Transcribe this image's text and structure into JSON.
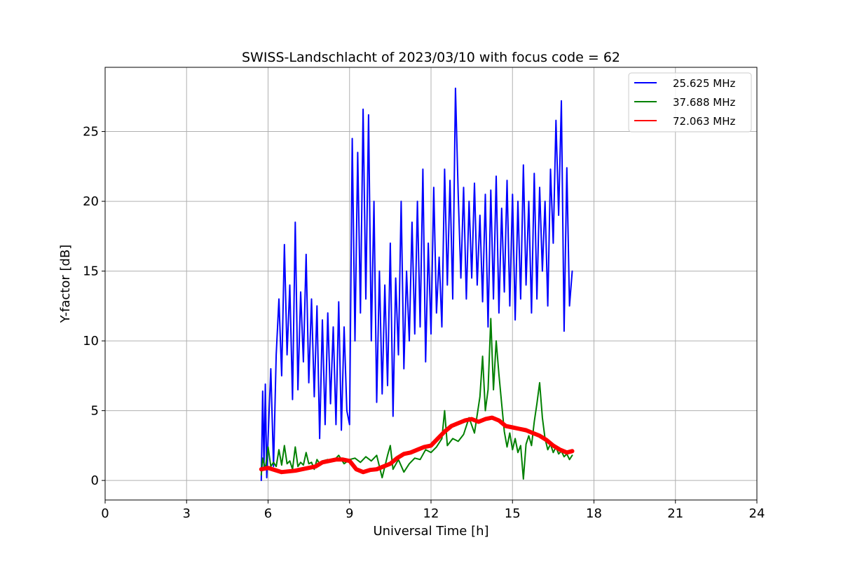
{
  "chart_data": {
    "type": "line",
    "title": "SWISS-Landschlacht of 2023/03/10 with focus code = 62",
    "xlabel": "Universal Time [h]",
    "ylabel": "Y-factor [dB]",
    "xlim": [
      0,
      24
    ],
    "ylim": [
      -1.4,
      29.6
    ],
    "xticks": [
      0,
      3,
      6,
      9,
      12,
      15,
      18,
      21,
      24
    ],
    "yticks": [
      0,
      5,
      10,
      15,
      20,
      25
    ],
    "grid": true,
    "legend_position": "top-right",
    "series": [
      {
        "name": "25.625 MHz",
        "color": "#0000ff",
        "x": [
          5.75,
          5.8,
          5.85,
          5.9,
          5.95,
          6.0,
          6.1,
          6.2,
          6.3,
          6.4,
          6.5,
          6.6,
          6.7,
          6.8,
          6.9,
          7.0,
          7.1,
          7.2,
          7.3,
          7.4,
          7.5,
          7.6,
          7.7,
          7.8,
          7.9,
          8.0,
          8.1,
          8.2,
          8.3,
          8.4,
          8.5,
          8.6,
          8.7,
          8.8,
          8.9,
          9.0,
          9.1,
          9.2,
          9.3,
          9.4,
          9.5,
          9.6,
          9.7,
          9.8,
          9.9,
          10.0,
          10.1,
          10.2,
          10.3,
          10.4,
          10.5,
          10.6,
          10.7,
          10.8,
          10.9,
          11.0,
          11.1,
          11.2,
          11.3,
          11.4,
          11.5,
          11.6,
          11.7,
          11.8,
          11.9,
          12.0,
          12.1,
          12.2,
          12.3,
          12.4,
          12.5,
          12.6,
          12.7,
          12.8,
          12.9,
          13.0,
          13.1,
          13.2,
          13.3,
          13.4,
          13.5,
          13.6,
          13.7,
          13.8,
          13.9,
          14.0,
          14.1,
          14.2,
          14.3,
          14.4,
          14.5,
          14.6,
          14.7,
          14.8,
          14.9,
          15.0,
          15.1,
          15.2,
          15.3,
          15.4,
          15.5,
          15.6,
          15.7,
          15.8,
          15.9,
          16.0,
          16.1,
          16.2,
          16.3,
          16.4,
          16.5,
          16.6,
          16.7,
          16.8,
          16.9,
          17.0,
          17.1,
          17.2
        ],
        "y": [
          0.0,
          6.4,
          1.0,
          6.9,
          0.2,
          3.0,
          8.0,
          1.0,
          9.0,
          13.0,
          7.5,
          16.9,
          9.0,
          14.0,
          5.8,
          18.5,
          6.5,
          13.5,
          8.5,
          16.2,
          7.0,
          13.0,
          6.0,
          12.5,
          3.0,
          11.5,
          4.0,
          12.0,
          5.5,
          11.0,
          4.0,
          12.8,
          3.6,
          11.0,
          5.0,
          4.0,
          24.5,
          10.0,
          23.5,
          12.0,
          26.6,
          13.0,
          26.2,
          10.0,
          20.0,
          5.6,
          15.0,
          6.2,
          14.0,
          6.8,
          17.0,
          4.6,
          14.5,
          9.0,
          20.0,
          8.0,
          15.0,
          10.0,
          18.5,
          10.5,
          20.0,
          11.0,
          22.3,
          8.5,
          17.0,
          10.5,
          21.0,
          12.0,
          16.0,
          11.0,
          22.3,
          14.0,
          21.5,
          13.0,
          28.1,
          20.5,
          14.5,
          21.0,
          13.0,
          20.0,
          14.5,
          21.3,
          14.0,
          19.0,
          12.8,
          20.5,
          11.0,
          20.8,
          13.0,
          21.8,
          12.0,
          19.5,
          13.5,
          21.5,
          12.5,
          20.5,
          11.5,
          20.0,
          13.0,
          22.6,
          14.0,
          20.0,
          12.0,
          22.0,
          13.0,
          21.0,
          15.0,
          20.0,
          12.5,
          22.3,
          17.0,
          25.8,
          19.0,
          27.2,
          10.7,
          22.4,
          12.5,
          15.0
        ]
      },
      {
        "name": "37.688 MHz",
        "color": "#008000",
        "x": [
          5.75,
          5.8,
          5.9,
          6.0,
          6.1,
          6.2,
          6.3,
          6.4,
          6.5,
          6.6,
          6.7,
          6.8,
          6.9,
          7.0,
          7.1,
          7.2,
          7.3,
          7.4,
          7.5,
          7.6,
          7.7,
          7.8,
          7.9,
          8.0,
          8.2,
          8.4,
          8.6,
          8.8,
          9.0,
          9.2,
          9.4,
          9.6,
          9.8,
          10.0,
          10.2,
          10.4,
          10.5,
          10.6,
          10.8,
          11.0,
          11.2,
          11.4,
          11.6,
          11.8,
          12.0,
          12.2,
          12.4,
          12.5,
          12.6,
          12.8,
          13.0,
          13.2,
          13.4,
          13.6,
          13.8,
          13.9,
          14.0,
          14.1,
          14.2,
          14.3,
          14.4,
          14.5,
          14.6,
          14.7,
          14.8,
          14.9,
          15.0,
          15.1,
          15.2,
          15.3,
          15.4,
          15.5,
          15.6,
          15.7,
          15.8,
          15.9,
          16.0,
          16.1,
          16.2,
          16.3,
          16.4,
          16.5,
          16.6,
          16.7,
          16.8,
          16.9,
          17.0,
          17.1,
          17.2
        ],
        "y": [
          0.4,
          1.6,
          0.8,
          2.4,
          1.0,
          1.3,
          1.0,
          2.2,
          1.1,
          2.5,
          1.2,
          1.4,
          0.8,
          2.4,
          1.0,
          1.3,
          1.1,
          2.0,
          1.2,
          1.3,
          0.8,
          1.5,
          1.2,
          1.4,
          1.5,
          1.4,
          1.8,
          1.2,
          1.5,
          1.6,
          1.3,
          1.7,
          1.4,
          1.8,
          0.2,
          1.8,
          2.5,
          0.8,
          1.5,
          0.6,
          1.2,
          1.6,
          1.5,
          2.2,
          2.0,
          2.4,
          3.0,
          5.0,
          2.5,
          3.0,
          2.8,
          3.3,
          4.5,
          3.4,
          6.0,
          8.9,
          5.0,
          6.5,
          11.6,
          6.5,
          10.0,
          7.6,
          5.5,
          3.5,
          2.4,
          3.4,
          2.2,
          3.0,
          2.0,
          2.5,
          0.1,
          2.6,
          3.2,
          2.5,
          4.2,
          5.5,
          7.0,
          4.5,
          3.0,
          2.2,
          2.6,
          2.0,
          2.4,
          1.9,
          2.1,
          1.7,
          1.9,
          1.5,
          1.8
        ]
      },
      {
        "name": "72.063 MHz",
        "color": "#ff0000",
        "x": [
          5.75,
          6.0,
          6.25,
          6.5,
          6.75,
          7.0,
          7.25,
          7.5,
          7.75,
          8.0,
          8.25,
          8.5,
          8.75,
          9.0,
          9.25,
          9.5,
          9.75,
          10.0,
          10.25,
          10.5,
          10.75,
          11.0,
          11.25,
          11.5,
          11.75,
          12.0,
          12.25,
          12.5,
          12.75,
          13.0,
          13.25,
          13.5,
          13.75,
          14.0,
          14.25,
          14.5,
          14.75,
          15.0,
          15.25,
          15.5,
          15.75,
          16.0,
          16.25,
          16.5,
          16.75,
          17.0,
          17.2
        ],
        "y": [
          0.8,
          0.9,
          0.75,
          0.6,
          0.65,
          0.7,
          0.8,
          0.9,
          1.0,
          1.3,
          1.4,
          1.5,
          1.5,
          1.4,
          0.8,
          0.6,
          0.75,
          0.8,
          1.0,
          1.2,
          1.6,
          1.9,
          2.0,
          2.2,
          2.4,
          2.5,
          3.0,
          3.5,
          3.9,
          4.1,
          4.3,
          4.4,
          4.2,
          4.4,
          4.5,
          4.3,
          3.9,
          3.8,
          3.7,
          3.6,
          3.4,
          3.2,
          2.9,
          2.5,
          2.2,
          2.0,
          2.1
        ]
      }
    ]
  }
}
